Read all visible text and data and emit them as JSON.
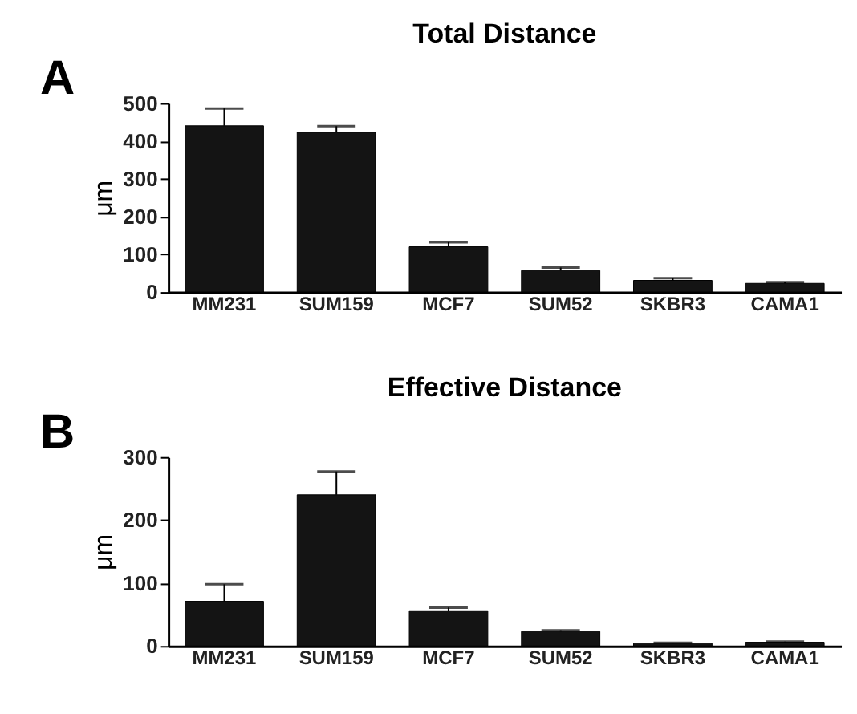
{
  "chart_data": [
    {
      "type": "bar",
      "title": "Total Distance",
      "ylabel": "μm",
      "annotations": [
        "A"
      ],
      "categories": [
        "MM231",
        "SUM159",
        "MCF7",
        "SUM52",
        "SKBR3",
        "CAMA1"
      ],
      "values": [
        440,
        423,
        120,
        57,
        31,
        23
      ],
      "color": "#141414",
      "errors": [
        [
          440,
          486
        ],
        [
          423,
          439
        ],
        [
          120,
          132
        ],
        [
          57,
          65
        ],
        [
          31,
          37
        ],
        [
          23,
          26
        ]
      ],
      "ylim": [
        0,
        500
      ],
      "yticks": [
        0,
        100,
        200,
        300,
        400,
        500
      ],
      "grid": false
    },
    {
      "type": "bar",
      "title": "Effective Distance",
      "ylabel": "μm",
      "annotations": [
        "B"
      ],
      "categories": [
        "MM231",
        "SUM159",
        "MCF7",
        "SUM52",
        "SKBR3",
        "CAMA1"
      ],
      "values": [
        71,
        240,
        56,
        23,
        4,
        6
      ],
      "color": "#141414",
      "errors": [
        [
          71,
          98
        ],
        [
          240,
          277
        ],
        [
          56,
          61
        ],
        [
          23,
          25
        ],
        [
          4,
          5
        ],
        [
          6,
          7
        ]
      ],
      "ylim": [
        0,
        300
      ],
      "yticks": [
        0,
        100,
        200,
        300
      ],
      "grid": false
    }
  ]
}
